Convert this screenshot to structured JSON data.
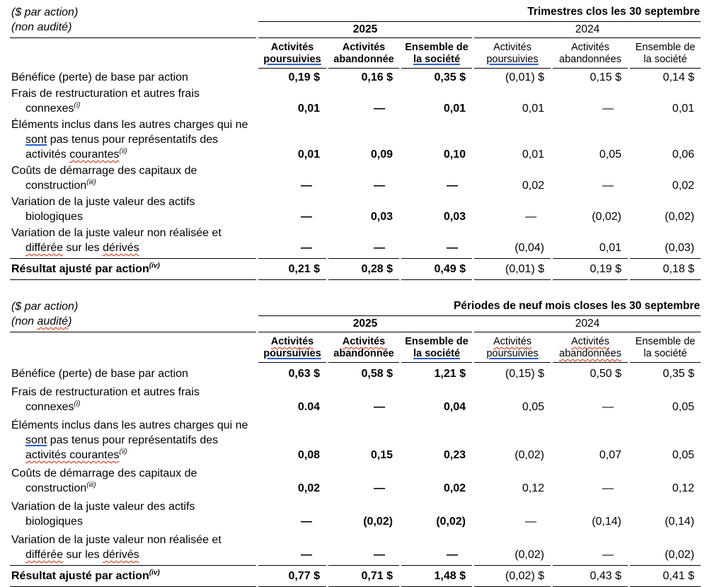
{
  "page": {
    "background": "#ffffff",
    "text_color": "#000000",
    "rule_color": "#000000",
    "spellcheck_red": "#cc2200",
    "grammar_blue": "#2a5bd7"
  },
  "tables": [
    {
      "id": "quarters",
      "title": "Trimestres clos les 30 septembre",
      "corner": [
        [
          {
            "t": "($ par action)"
          }
        ],
        [
          {
            "t": "(non audité)"
          }
        ]
      ],
      "years": [
        {
          "label": "2025",
          "bold": true
        },
        {
          "label": "2024",
          "bold": false
        }
      ],
      "columns": [
        {
          "bold": true,
          "lines": [
            [
              {
                "t": "Activités"
              }
            ],
            [
              {
                "t": "poursuivies",
                "m": "blue"
              }
            ]
          ]
        },
        {
          "bold": true,
          "lines": [
            [
              {
                "t": "Activités"
              }
            ],
            [
              {
                "t": "abandonnée"
              }
            ]
          ]
        },
        {
          "bold": true,
          "lines": [
            [
              {
                "t": "Ensemble de"
              }
            ],
            [
              {
                "t": "la société",
                "m": "blue"
              }
            ]
          ]
        },
        {
          "bold": false,
          "lines": [
            [
              {
                "t": "Activités"
              }
            ],
            [
              {
                "t": "poursuivies",
                "m": "blue"
              }
            ]
          ]
        },
        {
          "bold": false,
          "lines": [
            [
              {
                "t": "Activités"
              }
            ],
            [
              {
                "t": "abandonnées"
              }
            ]
          ]
        },
        {
          "bold": false,
          "lines": [
            [
              {
                "t": "Ensemble de"
              }
            ],
            [
              {
                "t": "la société"
              }
            ]
          ]
        }
      ],
      "rows": [
        {
          "label": [
            {
              "t": "Bénéfice (perte) de base par action"
            }
          ],
          "values": [
            "0,19 $",
            "0,16 $",
            "0,35 $",
            "(0,01) $",
            "0,15 $",
            "0,14 $"
          ]
        },
        {
          "label": [
            {
              "t": "Frais de restructuration et autres frais connexes"
            },
            {
              "t": "(i)",
              "sup": true
            }
          ],
          "values": [
            "0,01",
            "—",
            "0,01",
            "0,01",
            "—",
            "0,01"
          ]
        },
        {
          "label": [
            {
              "t": "Éléments inclus dans les autres charges qui ne "
            },
            {
              "t": "sont",
              "m": "blue"
            },
            {
              "t": " pas tenus pour représentatifs des activités "
            },
            {
              "t": "courantes",
              "m": "red"
            },
            {
              "t": "(ii)",
              "sup": true
            }
          ],
          "values": [
            "0,01",
            "0,09",
            "0,10",
            "0,01",
            "0,05",
            "0,06"
          ]
        },
        {
          "label": [
            {
              "t": "Coûts de démarrage des capitaux de construction"
            },
            {
              "t": "(iii)",
              "sup": true
            }
          ],
          "values": [
            "—",
            "—",
            "—",
            "0,02",
            "—",
            "0,02"
          ]
        },
        {
          "label": [
            {
              "t": "Variation de la juste valeur des actifs biologiques"
            }
          ],
          "values": [
            "—",
            "0,03",
            "0,03",
            "—",
            "(0,02)",
            "(0,02)"
          ]
        },
        {
          "label": [
            {
              "t": "Variation de la juste valeur non réalisée et "
            },
            {
              "t": "différée",
              "m": "red"
            },
            {
              "t": " sur les "
            },
            {
              "t": "dérivés",
              "m": "red"
            }
          ],
          "values": [
            "—",
            "—",
            "—",
            "(0,04)",
            "0,01",
            "(0,03)"
          ]
        },
        {
          "total": true,
          "label": [
            {
              "t": "Résultat ajusté par action"
            },
            {
              "t": "(iv)",
              "sup": true
            }
          ],
          "values": [
            "0,21 $",
            "0,28 $",
            "0,49 $",
            "(0,01) $",
            "0,19 $",
            "0,18 $"
          ]
        }
      ]
    },
    {
      "id": "nine-months",
      "title": "Périodes de neuf mois closes les 30 septembre",
      "corner": [
        [
          {
            "t": "($ par action)"
          }
        ],
        [
          {
            "t": "(non "
          },
          {
            "t": "audité",
            "m": "red"
          },
          {
            "t": ")"
          }
        ]
      ],
      "years": [
        {
          "label": "2025",
          "bold": true
        },
        {
          "label": "2024",
          "bold": false
        }
      ],
      "columns": [
        {
          "bold": true,
          "lines": [
            [
              {
                "t": "Activités",
                "m": "red"
              }
            ],
            [
              {
                "t": "poursuivies",
                "m": "blue"
              }
            ]
          ]
        },
        {
          "bold": true,
          "lines": [
            [
              {
                "t": "Activités",
                "m": "red"
              }
            ],
            [
              {
                "t": "abandonnée"
              }
            ]
          ]
        },
        {
          "bold": true,
          "lines": [
            [
              {
                "t": "Ensemble de"
              }
            ],
            [
              {
                "t": "la société",
                "m": "blue"
              }
            ]
          ]
        },
        {
          "bold": false,
          "lines": [
            [
              {
                "t": "Activités",
                "m": "red"
              }
            ],
            [
              {
                "t": "poursuivies",
                "m": "blue"
              }
            ]
          ]
        },
        {
          "bold": false,
          "lines": [
            [
              {
                "t": "Activités",
                "m": "red"
              }
            ],
            [
              {
                "t": "abandonnées",
                "m": "red"
              }
            ]
          ]
        },
        {
          "bold": false,
          "lines": [
            [
              {
                "t": "Ensemble de"
              }
            ],
            [
              {
                "t": "la société"
              }
            ]
          ]
        }
      ],
      "rows": [
        {
          "label": [
            {
              "t": "Bénéfice (perte) de base par action"
            }
          ],
          "values": [
            "0,63 $",
            "0,58 $",
            "1,21 $",
            "(0,15) $",
            "0,50 $",
            "0,35 $"
          ]
        },
        {
          "label": [
            {
              "t": "Frais de restructuration et autres frais connexes"
            },
            {
              "t": "(i)",
              "sup": true
            }
          ],
          "values": [
            "0.04",
            "—",
            "0,04",
            "0,05",
            "—",
            "0,05"
          ]
        },
        {
          "label": [
            {
              "t": "Éléments inclus dans les autres charges qui ne "
            },
            {
              "t": "sont",
              "m": "blue"
            },
            {
              "t": " pas tenus pour représentatifs des "
            },
            {
              "t": "activités courantes",
              "m": "red"
            },
            {
              "t": "(ii)",
              "sup": true
            }
          ],
          "values": [
            "0,08",
            "0,15",
            "0,23",
            "(0,02)",
            "0,07",
            "0,05"
          ]
        },
        {
          "label": [
            {
              "t": "Coûts de démarrage des capitaux de construction"
            },
            {
              "t": "(iii)",
              "sup": true
            }
          ],
          "values": [
            "0,02",
            "—",
            "0,02",
            "0,12",
            "—",
            "0,12"
          ]
        },
        {
          "label": [
            {
              "t": "Variation de la juste valeur des actifs biologiques"
            }
          ],
          "values": [
            "—",
            "(0,02)",
            "(0,02)",
            "—",
            "(0,14)",
            "(0,14)"
          ]
        },
        {
          "label": [
            {
              "t": "Variation de la juste valeur non réalisée et "
            },
            {
              "t": "différée",
              "m": "red"
            },
            {
              "t": " sur les "
            },
            {
              "t": "dérivés",
              "m": "red"
            }
          ],
          "values": [
            "—",
            "—",
            "—",
            "(0,02)",
            "—",
            "(0,02)"
          ]
        },
        {
          "total": true,
          "label": [
            {
              "t": "Résultat ajusté par action"
            },
            {
              "t": "(iv)",
              "sup": true
            }
          ],
          "values": [
            "0,77 $",
            "0,71 $",
            "1,48 $",
            "(0,02) $",
            "0,43 $",
            "0,41 $"
          ]
        }
      ]
    }
  ]
}
